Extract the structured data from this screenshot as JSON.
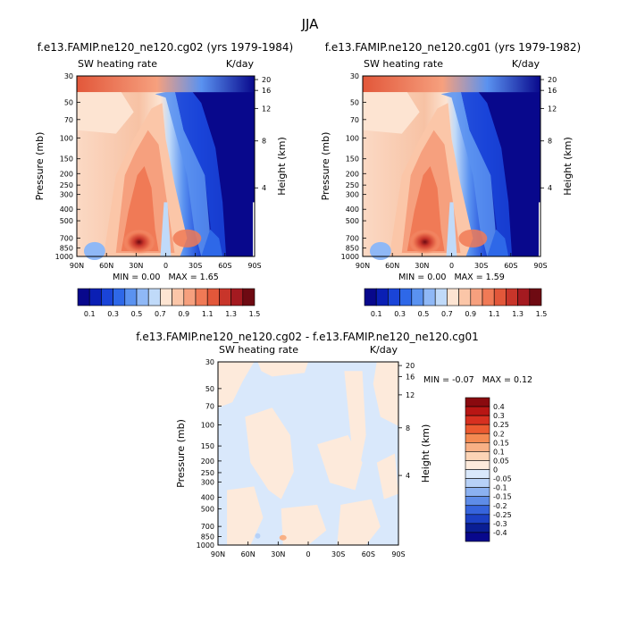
{
  "chart_data": {
    "title": "JJA",
    "panels": [
      {
        "type": "heatmap",
        "subtitle": "f.e13.FAMIP.ne120_ne120.cg02 (yrs 1979-1984)",
        "left_label": "SW heating rate",
        "right_label": "K/day",
        "xlabel": "",
        "ylabel": "Pressure (mb)",
        "ylabel_right": "Height (km)",
        "x_ticks": [
          "90N",
          "60N",
          "30N",
          "0",
          "30S",
          "60S",
          "90S"
        ],
        "y_ticks": [
          "30",
          "50",
          "70",
          "100",
          "150",
          "200",
          "250",
          "300",
          "400",
          "500",
          "700",
          "850",
          "1000"
        ],
        "height_ticks": [
          "20",
          "16",
          "12",
          "8",
          "4"
        ],
        "min_label": "MIN =",
        "min_value": "0.00",
        "max_label": "MAX =",
        "max_value": "1.65",
        "colorbar_labels": [
          "0.1",
          "0.3",
          "0.5",
          "0.7",
          "0.9",
          "1.1",
          "1.3",
          "1.5"
        ]
      },
      {
        "type": "heatmap",
        "subtitle": "f.e13.FAMIP.ne120_ne120.cg01 (yrs 1979-1982)",
        "left_label": "SW heating rate",
        "right_label": "K/day",
        "xlabel": "",
        "ylabel": "Pressure (mb)",
        "ylabel_right": "Height (km)",
        "x_ticks": [
          "90N",
          "60N",
          "30N",
          "0",
          "30S",
          "60S",
          "90S"
        ],
        "y_ticks": [
          "30",
          "50",
          "70",
          "100",
          "150",
          "200",
          "250",
          "300",
          "400",
          "500",
          "700",
          "850",
          "1000"
        ],
        "height_ticks": [
          "20",
          "16",
          "12",
          "8",
          "4"
        ],
        "min_label": "MIN =",
        "min_value": "0.00",
        "max_label": "MAX =",
        "max_value": "1.59",
        "colorbar_labels": [
          "0.1",
          "0.3",
          "0.5",
          "0.7",
          "0.9",
          "1.1",
          "1.3",
          "1.5"
        ]
      },
      {
        "type": "heatmap",
        "subtitle": "f.e13.FAMIP.ne120_ne120.cg02 - f.e13.FAMIP.ne120_ne120.cg01",
        "left_label": "SW heating rate",
        "right_label": "K/day",
        "xlabel": "",
        "ylabel": "Pressure (mb)",
        "ylabel_right": "Height (km)",
        "x_ticks": [
          "90N",
          "60N",
          "30N",
          "0",
          "30S",
          "60S",
          "90S"
        ],
        "y_ticks": [
          "30",
          "50",
          "70",
          "100",
          "150",
          "200",
          "250",
          "300",
          "400",
          "500",
          "700",
          "850",
          "1000"
        ],
        "height_ticks": [
          "20",
          "16",
          "12",
          "8",
          "4"
        ],
        "min_label": "MIN =",
        "min_value": "-0.07",
        "max_label": "MAX =",
        "max_value": "0.12",
        "colorbar_labels": [
          "0.4",
          "0.3",
          "0.25",
          "0.2",
          "0.15",
          "0.1",
          "0.05",
          "0",
          "-0.05",
          "-0.1",
          "-0.15",
          "-0.2",
          "-0.25",
          "-0.3",
          "-0.4"
        ]
      }
    ]
  },
  "colors": {
    "abs_scale": [
      "#08088c",
      "#0a1fb4",
      "#1a44d8",
      "#2e68e8",
      "#5a92f0",
      "#8fb8f6",
      "#c0daf9",
      "#fde4d2",
      "#fbc6a8",
      "#f6a07e",
      "#f07a56",
      "#e2573a",
      "#c8352a",
      "#a41a20",
      "#6e0a12"
    ],
    "diff_scale": [
      "#8a0a0f",
      "#b81614",
      "#d73020",
      "#ec5a30",
      "#f48a52",
      "#f8b085",
      "#fcd4b6",
      "#fdeadb",
      "#d9e8fb",
      "#b7d1f7",
      "#8bb1f1",
      "#5e8ce8",
      "#3664dc",
      "#1c40c4",
      "#0a1e94"
    ]
  }
}
